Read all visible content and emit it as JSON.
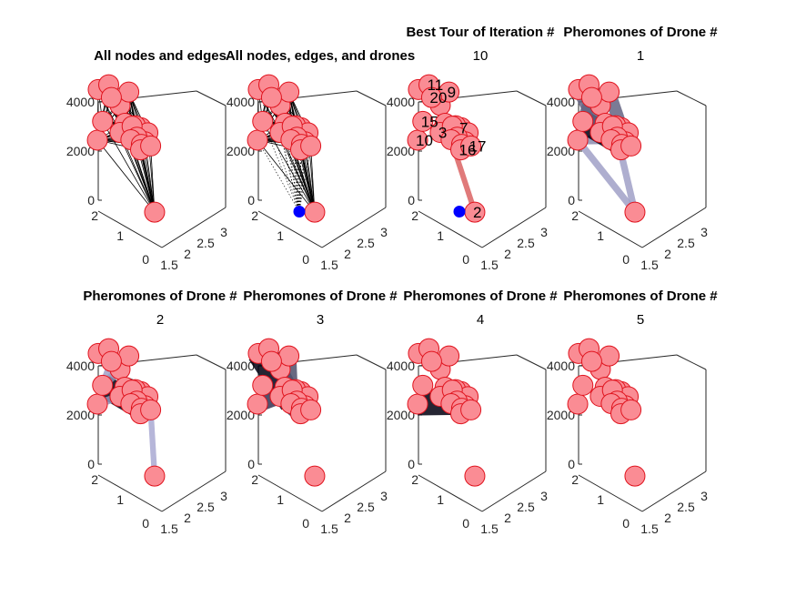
{
  "chart_data": {
    "type": "scatter",
    "projection": "3d",
    "axes": {
      "x_ticks": [
        "1.5",
        "2",
        "2.5",
        "3"
      ],
      "y_ticks": [
        "0",
        "1",
        "2"
      ],
      "z_ticks": [
        "0",
        "2000",
        "4000"
      ],
      "xlim": [
        1.3,
        3.1
      ],
      "ylim": [
        0,
        2.3
      ],
      "zlim": [
        0,
        4400
      ]
    },
    "colors": {
      "node_fill": "#fa8c94",
      "node_edge": "#e0141e",
      "edge": "#000000",
      "drone": "#0000ff",
      "pheromone_low": "#c8c8f5",
      "pheromone_high": "#000010",
      "tour": "#e07a7a"
    },
    "nodes": [
      {
        "id": 1,
        "x": 1.45,
        "y": 2.15,
        "z": 2600
      },
      {
        "id": 2,
        "x": 2.6,
        "y": 0.9,
        "z": 0
      },
      {
        "id": 3,
        "x": 1.9,
        "y": 1.7,
        "z": 1750
      },
      {
        "id": 4,
        "x": 2.05,
        "y": 1.85,
        "z": 2100
      },
      {
        "id": 5,
        "x": 2.2,
        "y": 1.7,
        "z": 2300
      },
      {
        "id": 6,
        "x": 2.0,
        "y": 2.2,
        "z": 2400
      },
      {
        "id": 7,
        "x": 2.45,
        "y": 1.85,
        "z": 2300
      },
      {
        "id": 8,
        "x": 2.5,
        "y": 1.6,
        "z": 2050
      },
      {
        "id": 9,
        "x": 2.05,
        "y": 1.35,
        "z": 4000
      },
      {
        "id": 10,
        "x": 1.4,
        "y": 2.0,
        "z": 600
      },
      {
        "id": 11,
        "x": 1.7,
        "y": 2.1,
        "z": 3100
      },
      {
        "id": 12,
        "x": 2.3,
        "y": 1.6,
        "z": 2050
      },
      {
        "id": 13,
        "x": 2.6,
        "y": 1.75,
        "z": 2350
      },
      {
        "id": 14,
        "x": 2.3,
        "y": 1.8,
        "z": 2300
      },
      {
        "id": 15,
        "x": 1.45,
        "y": 1.6,
        "z": 1900
      },
      {
        "id": 16,
        "x": 2.35,
        "y": 1.4,
        "z": 1800
      },
      {
        "id": 17,
        "x": 2.6,
        "y": 1.4,
        "z": 2200
      },
      {
        "id": 18,
        "x": 2.15,
        "y": 1.6,
        "z": 1800
      },
      {
        "id": 19,
        "x": 2.4,
        "y": 1.55,
        "z": 1900
      },
      {
        "id": 20,
        "x": 1.55,
        "y": 1.0,
        "z": 3700
      }
    ],
    "drone": {
      "x": 2.15,
      "y": 0.55,
      "z": 0
    },
    "best_tour": [
      1,
      15,
      10,
      3,
      18,
      2,
      16,
      13,
      17,
      11,
      9,
      20
    ],
    "visible_node_labels": [
      2,
      3,
      7,
      9,
      10,
      11,
      15,
      16,
      17,
      20
    ],
    "pheromone_trails": {
      "drone1": [
        [
          18,
          10,
          0.3
        ],
        [
          10,
          15,
          0.35
        ],
        [
          15,
          19,
          1.0
        ],
        [
          1,
          3,
          0.5
        ],
        [
          1,
          6,
          0.3
        ],
        [
          3,
          16,
          0.5
        ],
        [
          16,
          12,
          0.4
        ],
        [
          12,
          8,
          0.4
        ],
        [
          8,
          5,
          0.4
        ],
        [
          5,
          7,
          0.4
        ],
        [
          7,
          9,
          0.5
        ],
        [
          9,
          20,
          0.55
        ],
        [
          20,
          15,
          0.5
        ],
        [
          4,
          14,
          0.5
        ],
        [
          2,
          10,
          0.2
        ],
        [
          2,
          12,
          0.2
        ]
      ],
      "drone2": [
        [
          15,
          19,
          1.0
        ],
        [
          15,
          6,
          0.3
        ],
        [
          16,
          20,
          0.25
        ],
        [
          10,
          3,
          0.25
        ],
        [
          20,
          15,
          0.2
        ],
        [
          11,
          4,
          0.3
        ],
        [
          4,
          5,
          0.9
        ],
        [
          2,
          17,
          0.15
        ],
        [
          1,
          20,
          0.2
        ]
      ],
      "drone3": [
        [
          1,
          18,
          1.0
        ],
        [
          18,
          9,
          0.6
        ],
        [
          9,
          20,
          0.5
        ],
        [
          1,
          20,
          0.6
        ],
        [
          15,
          14,
          0.8
        ],
        [
          14,
          10,
          0.7
        ],
        [
          10,
          3,
          0.6
        ],
        [
          3,
          16,
          0.7
        ],
        [
          16,
          4,
          0.65
        ],
        [
          4,
          12,
          0.6
        ],
        [
          12,
          7,
          0.5
        ],
        [
          11,
          12,
          0.6
        ]
      ],
      "drone4": [
        [
          10,
          18,
          1.0
        ],
        [
          18,
          14,
          0.6
        ]
      ],
      "drone5": []
    },
    "panels": [
      {
        "title": "All nodes and edges",
        "subtitle": "",
        "mode": "edges"
      },
      {
        "title": "All nodes, edges, and drones",
        "subtitle": "",
        "mode": "edges_drones"
      },
      {
        "title": "Best Tour of Iteration #",
        "subtitle": "10",
        "mode": "best_tour"
      },
      {
        "title": "Pheromones of Drone #",
        "subtitle": "1",
        "mode": "pheromone",
        "drone": "drone1"
      },
      {
        "title": "Pheromones of Drone #",
        "subtitle": "2",
        "mode": "pheromone",
        "drone": "drone2"
      },
      {
        "title": "Pheromones of Drone #",
        "subtitle": "3",
        "mode": "pheromone",
        "drone": "drone3"
      },
      {
        "title": "Pheromones of Drone #",
        "subtitle": "4",
        "mode": "pheromone",
        "drone": "drone4"
      },
      {
        "title": "Pheromones of Drone #",
        "subtitle": "5",
        "mode": "pheromone",
        "drone": "drone5"
      }
    ]
  }
}
